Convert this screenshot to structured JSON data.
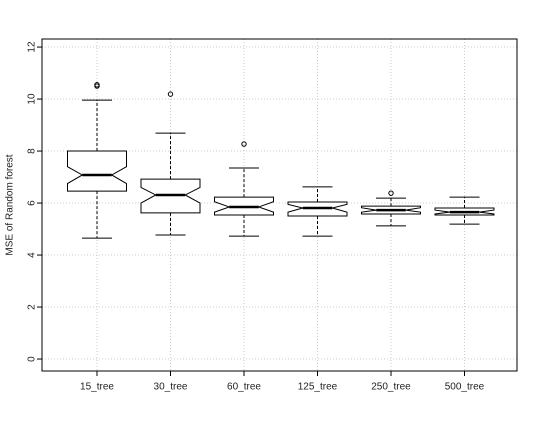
{
  "chart_data": {
    "type": "boxplot",
    "ylabel": "MSE of Random forest",
    "categories": [
      "15_tree",
      "30_tree",
      "60_tree",
      "125_tree",
      "250_tree",
      "500_tree"
    ],
    "boxes": [
      {
        "low": 4.65,
        "q1": 6.46,
        "median": 7.08,
        "q3": 8.0,
        "high": 9.96,
        "notch": [
          6.75,
          7.4
        ],
        "outliers": [
          10.5,
          10.55
        ]
      },
      {
        "low": 4.77,
        "q1": 5.62,
        "median": 6.31,
        "q3": 6.92,
        "high": 8.69,
        "notch": [
          6.0,
          6.6
        ],
        "outliers": [
          10.19
        ]
      },
      {
        "low": 4.73,
        "q1": 5.54,
        "median": 5.85,
        "q3": 6.23,
        "high": 7.35,
        "notch": [
          5.65,
          6.05
        ],
        "outliers": [
          8.27
        ]
      },
      {
        "low": 4.73,
        "q1": 5.5,
        "median": 5.81,
        "q3": 6.04,
        "high": 6.62,
        "notch": [
          5.65,
          5.95
        ],
        "outliers": []
      },
      {
        "low": 5.12,
        "q1": 5.58,
        "median": 5.73,
        "q3": 5.88,
        "high": 6.19,
        "notch": [
          5.65,
          5.82
        ],
        "outliers": [
          6.38
        ]
      },
      {
        "low": 5.19,
        "q1": 5.54,
        "median": 5.65,
        "q3": 5.81,
        "high": 6.23,
        "notch": [
          5.58,
          5.73
        ],
        "outliers": []
      }
    ],
    "ylim": [
      -0.46,
      12.31
    ],
    "yticks": [
      0,
      2,
      4,
      6,
      8,
      10,
      12
    ],
    "grid": true
  }
}
